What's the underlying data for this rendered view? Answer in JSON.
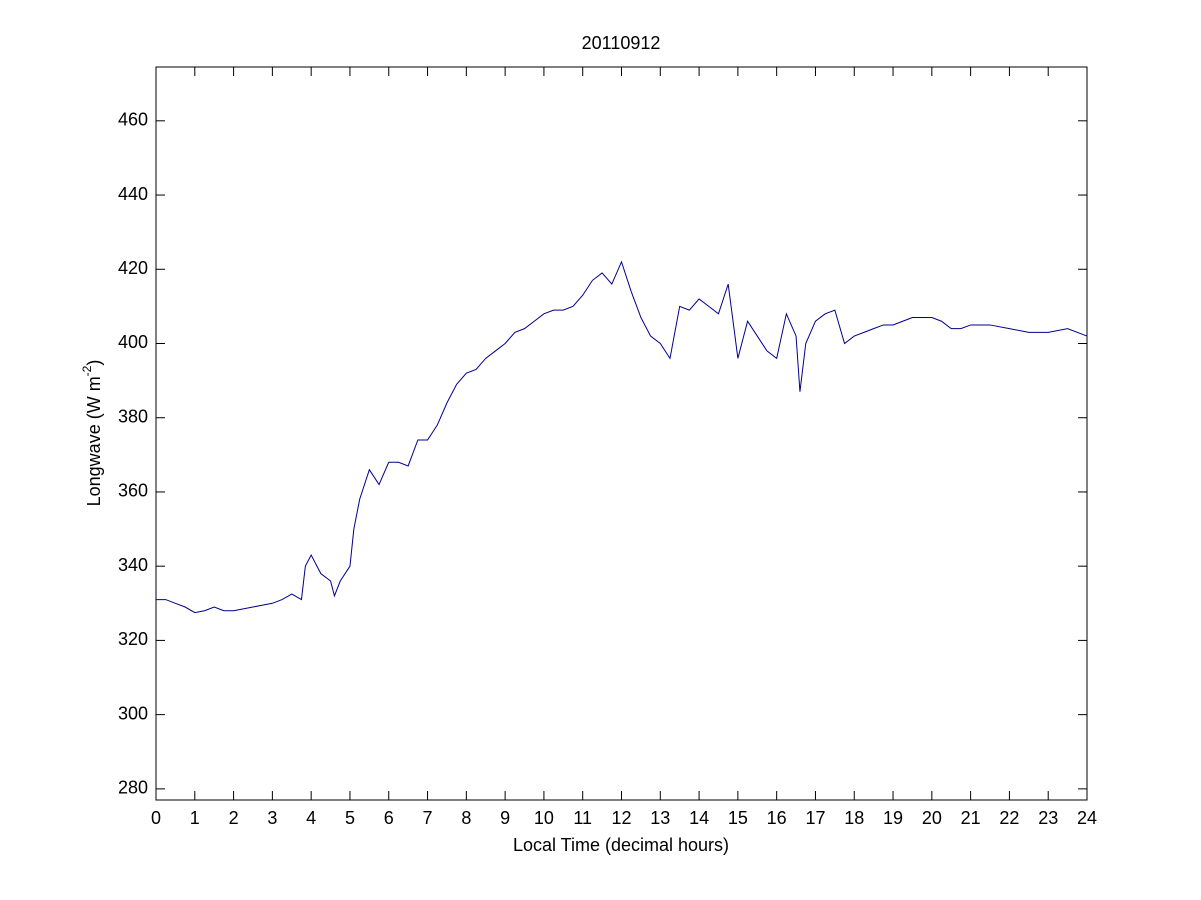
{
  "chart_data": {
    "type": "line",
    "title": "20110912",
    "xlabel": "Local Time (decimal hours)",
    "ylabel": "Longwave (W m",
    "ylabel_sup": "-2",
    "ylabel_end": ")",
    "xlim": [
      0,
      24
    ],
    "xticks": [
      0,
      1,
      2,
      3,
      4,
      5,
      6,
      7,
      8,
      9,
      10,
      11,
      12,
      13,
      14,
      15,
      16,
      17,
      18,
      19,
      20,
      21,
      22,
      23,
      24
    ],
    "ylim": [
      277,
      474.5
    ],
    "yticks": [
      280,
      300,
      320,
      340,
      360,
      380,
      400,
      420,
      440,
      460
    ],
    "grid": false,
    "x": [
      0,
      0.25,
      0.5,
      0.75,
      1,
      1.25,
      1.5,
      1.75,
      2,
      2.25,
      2.5,
      2.75,
      3,
      3.25,
      3.5,
      3.75,
      3.85,
      4,
      4.25,
      4.5,
      4.6,
      4.75,
      5,
      5.1,
      5.25,
      5.5,
      5.75,
      6,
      6.25,
      6.5,
      6.75,
      7,
      7.25,
      7.5,
      7.75,
      8,
      8.25,
      8.5,
      8.75,
      9,
      9.25,
      9.5,
      9.75,
      10,
      10.25,
      10.5,
      10.75,
      11,
      11.25,
      11.5,
      11.75,
      12,
      12.25,
      12.5,
      12.75,
      13,
      13.25,
      13.5,
      13.75,
      14,
      14.25,
      14.5,
      14.75,
      15,
      15.25,
      15.5,
      15.75,
      16,
      16.25,
      16.5,
      16.6,
      16.75,
      17,
      17.25,
      17.5,
      17.75,
      18,
      18.25,
      18.5,
      18.75,
      19,
      19.25,
      19.5,
      19.75,
      20,
      20.25,
      20.5,
      20.75,
      21,
      21.5,
      22,
      22.5,
      23,
      23.5,
      24
    ],
    "series": [
      {
        "color": "#00008b",
        "values": [
          331,
          331,
          330,
          329,
          327.5,
          328,
          329,
          328,
          328,
          328.5,
          329,
          329.5,
          330,
          331,
          332.5,
          331,
          340,
          343,
          338,
          336,
          332,
          336,
          340,
          350,
          358,
          366,
          362,
          368,
          368,
          367,
          374,
          374,
          378,
          384,
          389,
          392,
          393,
          396,
          398,
          400,
          403,
          404,
          406,
          408,
          409,
          409,
          410,
          413,
          417,
          419,
          416,
          422,
          414,
          407,
          402,
          400,
          396,
          410,
          409,
          412,
          410,
          408,
          416,
          396,
          406,
          402,
          398,
          396,
          408,
          402,
          387,
          400,
          406,
          408,
          409,
          400,
          402,
          403,
          404,
          405,
          405,
          406,
          407,
          407,
          407,
          406,
          404,
          404,
          405,
          405,
          404,
          403,
          403,
          404,
          402
        ]
      }
    ]
  }
}
